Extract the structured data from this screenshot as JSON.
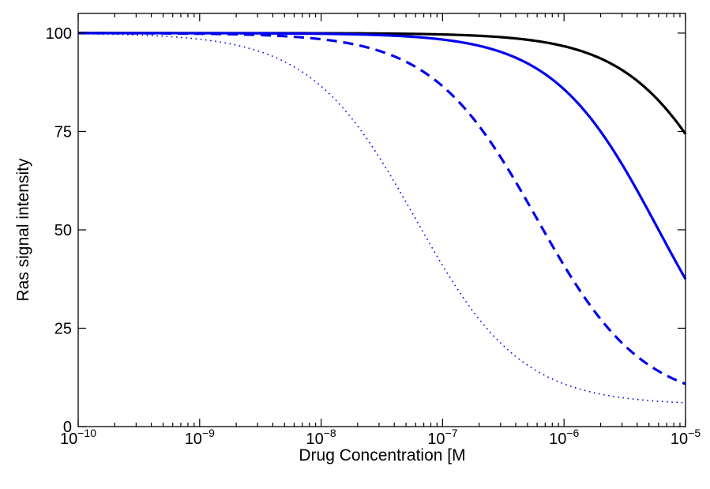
{
  "chart_data": {
    "type": "line",
    "title": "",
    "xlabel": "Drug Concentration [M",
    "ylabel": "Ras signal intensity",
    "xscale": "log",
    "xlim": [
      1e-10,
      1e-05
    ],
    "ylim": [
      0,
      105
    ],
    "x_ticks": [
      {
        "value": 1e-10,
        "base": "10",
        "exp": "−10"
      },
      {
        "value": 1e-09,
        "base": "10",
        "exp": "−9"
      },
      {
        "value": 1e-08,
        "base": "10",
        "exp": "−8"
      },
      {
        "value": 1e-07,
        "base": "10",
        "exp": "−7"
      },
      {
        "value": 1e-06,
        "base": "10",
        "exp": "−6"
      },
      {
        "value": 1e-05,
        "base": "10",
        "exp": "−5"
      }
    ],
    "y_ticks": [
      0,
      25,
      50,
      75,
      100
    ],
    "grid": false,
    "series": [
      {
        "color": "#000000",
        "style": "solid",
        "ic50": 2.9e-05,
        "min": 0,
        "hill": 1
      },
      {
        "color": "#0000ee",
        "style": "solid",
        "ic50": 6e-06,
        "min": 0,
        "hill": 1
      },
      {
        "color": "#0000ee",
        "style": "dashed",
        "ic50": 6e-07,
        "min": 5.5,
        "hill": 1
      },
      {
        "color": "#0000ee",
        "style": "dotted",
        "ic50": 6e-08,
        "min": 5.5,
        "hill": 1
      }
    ]
  }
}
